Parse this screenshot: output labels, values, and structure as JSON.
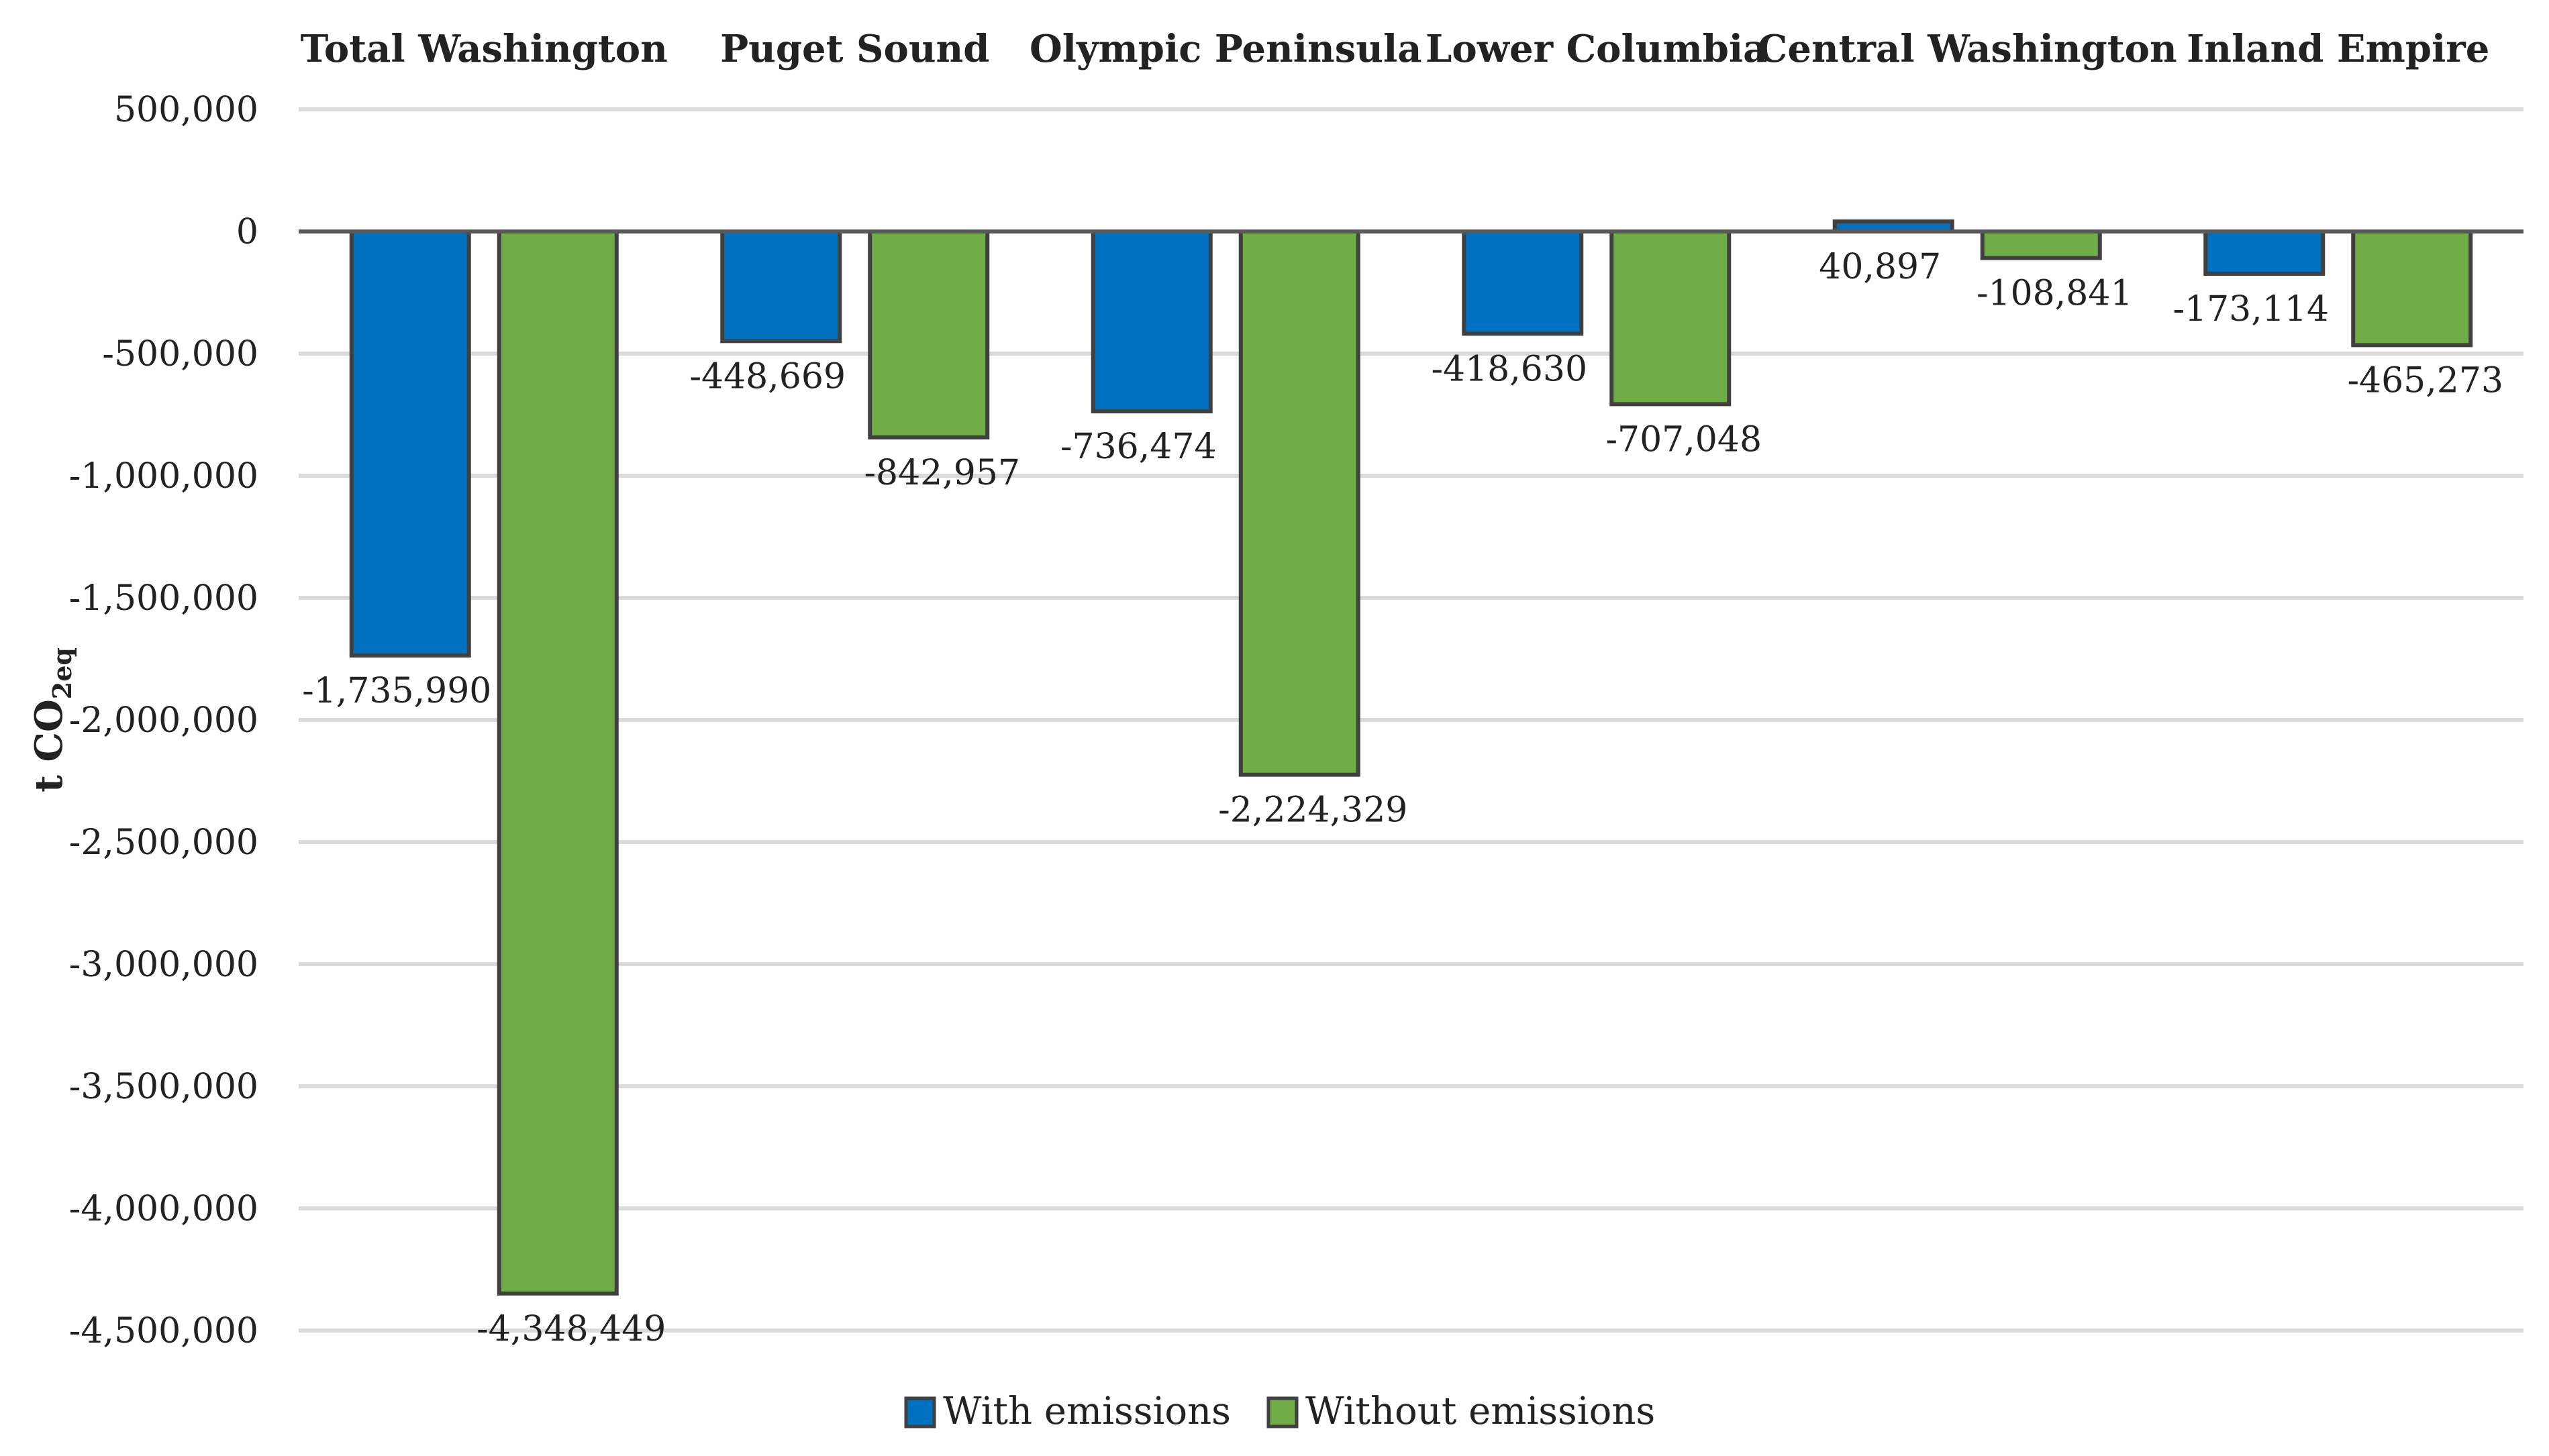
{
  "chart_data": {
    "type": "bar",
    "title": "",
    "xlabel": "",
    "ylabel": "t CO",
    "ylabel_subscript": "2eq",
    "ylim": [
      -4500000,
      500000
    ],
    "ytick_step": 500000,
    "categories": [
      "Total Washington",
      "Puget Sound",
      "Olympic Peninsula",
      "Lower Columbia",
      "Central Washington",
      "Inland Empire"
    ],
    "series": [
      {
        "name": "With emissions",
        "color": "#0070C0",
        "values": [
          -1735990,
          -448669,
          -736474,
          -418630,
          40897,
          -173114
        ],
        "labels": [
          "-1,735,990",
          "-448,669",
          "-736,474",
          "-418,630",
          "40,897",
          "-173,114"
        ]
      },
      {
        "name": "Without emissions",
        "color": "#70AD47",
        "values": [
          -4348449,
          -842957,
          -2224329,
          -707048,
          -108841,
          -465273
        ],
        "labels": [
          "-4,348,449",
          "-842,957",
          "-2,224,329",
          "-707,048",
          "-108,841",
          "-465,273"
        ]
      }
    ],
    "category_position": "top",
    "legend_position": "bottom",
    "grid": true
  }
}
